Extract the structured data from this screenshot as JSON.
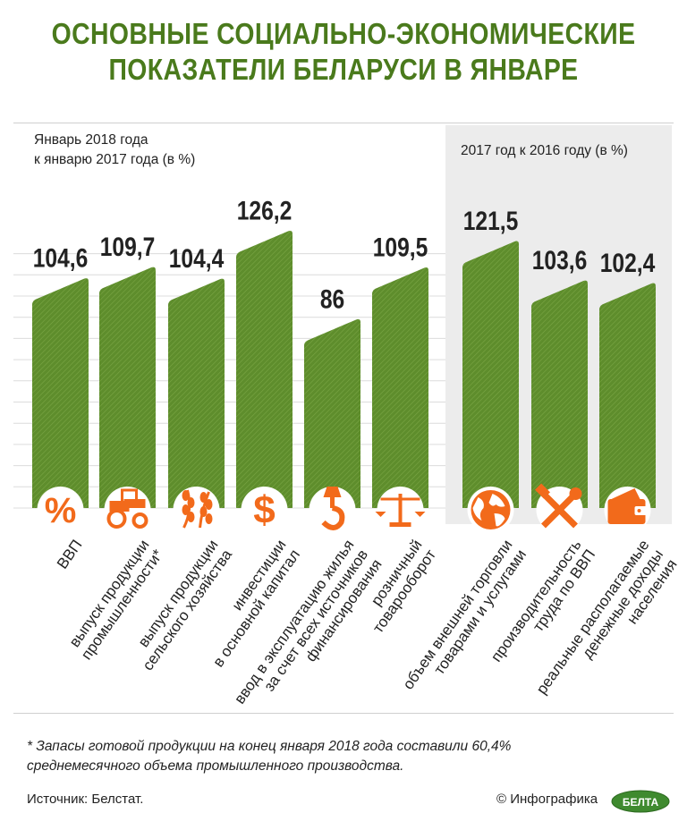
{
  "title_lines": [
    "ОСНОВНЫЕ СОЦИАЛЬНО-ЭКОНОМИЧЕСКИЕ",
    "ПОКАЗАТЕЛИ БЕЛАРУСИ В ЯНВАРЕ"
  ],
  "subtitle_left": [
    "Январь 2018 года",
    "к январю 2017 года (в %)"
  ],
  "subtitle_right": "2017 год к 2016 году (в %)",
  "colors": {
    "title": "#4a7a1c",
    "bar": "#5e8d2c",
    "bar_hatch": "#7aa645",
    "icon": "#f26a1b",
    "panel": "#ececec"
  },
  "chart_data": {
    "type": "bar",
    "title": "Основные социально-экономические показатели Беларуси в январе",
    "categories": [
      "ВВП",
      "выпуск продукции промышленности*",
      "выпуск продукции сельского хозяйства",
      "инвестиции в основной капитал",
      "ввод в эксплуатацию жилья за счет всех источников финансирования",
      "розничный товарооборот",
      "объем внешней торговли товарами и услугами",
      "производительность труда по ВВП",
      "реальные располагаемые денежные доходы населения"
    ],
    "category_lines": [
      [
        "ВВП"
      ],
      [
        "выпуск продукции",
        "промышленности*"
      ],
      [
        "выпуск продукции",
        "сельского хозяйства"
      ],
      [
        "инвестиции",
        "в основной капитал"
      ],
      [
        "ввод в эксплуатацию жилья",
        "за счет всех источников",
        "финансирования"
      ],
      [
        "розничный",
        "товарооборот"
      ],
      [
        "объем внешней торговли",
        "товарами и услугами"
      ],
      [
        "производительность",
        "труда по ВВП"
      ],
      [
        "реальные располагаемые",
        "денежные доходы",
        "населения"
      ]
    ],
    "values": [
      104.6,
      109.7,
      104.4,
      126.2,
      86,
      109.5,
      121.5,
      103.6,
      102.4
    ],
    "labels": [
      "104,6",
      "109,7",
      "104,4",
      "126,2",
      "86",
      "109,5",
      "121,5",
      "103,6",
      "102,4"
    ],
    "groups": [
      {
        "name": "Январь 2018 года к январю 2017 года (в %)",
        "indices": [
          0,
          1,
          2,
          3,
          4,
          5
        ]
      },
      {
        "name": "2017 год к 2016 году (в %)",
        "indices": [
          6,
          7,
          8
        ]
      }
    ],
    "icons": [
      "percent-icon",
      "tractor-icon",
      "wheat-icon",
      "dollar-icon",
      "crane-hook-icon",
      "scales-icon",
      "globe-icon",
      "tools-icon",
      "wallet-icon"
    ],
    "ylim": [
      0,
      130
    ],
    "xlabel": "",
    "ylabel": ""
  },
  "footnote": [
    "* Запасы готовой продукции на конец января 2018 года составили 60,4%",
    "среднемесячного объема промышленного производства."
  ],
  "source": "Источник: Белстат.",
  "credit": "© Инфографика",
  "logo_text": "БЕЛТА"
}
